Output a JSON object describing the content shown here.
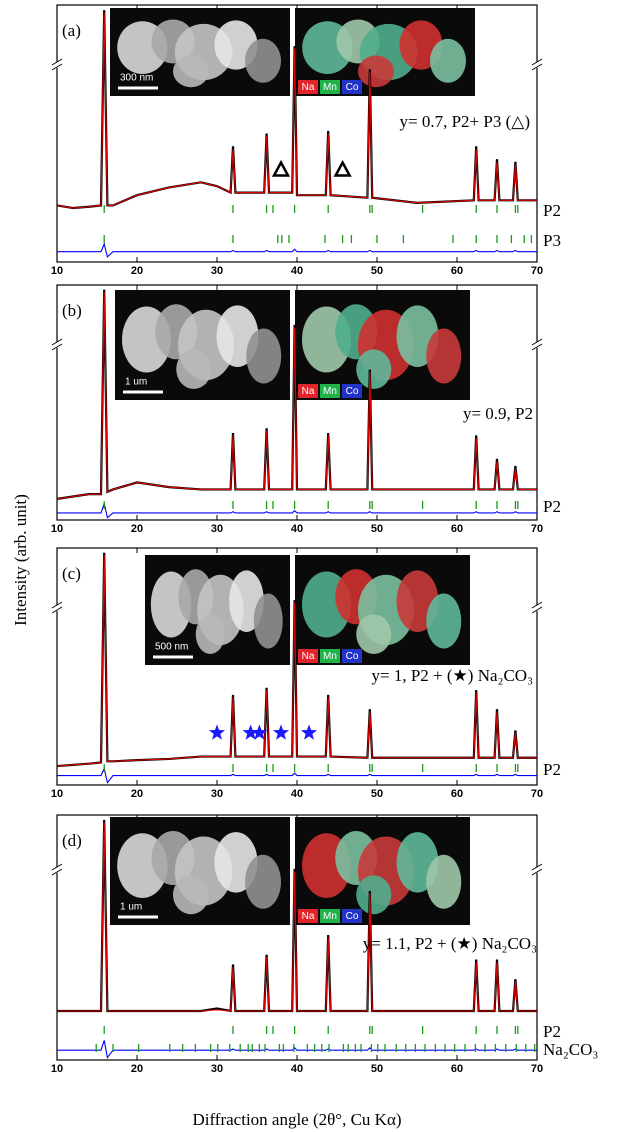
{
  "axis_labels": {
    "y": "Intensity (arb. unit)",
    "x": "Diffraction angle (2θ°, Cu Kα)"
  },
  "elements": [
    {
      "name": "Na",
      "color": "#e0242a"
    },
    {
      "name": "Mn",
      "color": "#1fb34a"
    },
    {
      "name": "Co",
      "color": "#2233c8"
    }
  ],
  "chart_data": [
    {
      "type": "line",
      "label": "(a)",
      "annotation": "y= 0.7, P2+ P3 (△)",
      "inset": {
        "scale_bar": "300 nm"
      },
      "xlim": [
        10,
        70
      ],
      "xticks": [
        10,
        20,
        30,
        40,
        50,
        60,
        70
      ],
      "ylim": [
        0,
        100
      ],
      "x": [
        10,
        12,
        14,
        15.5,
        15.9,
        16.3,
        17,
        20,
        24,
        28,
        30,
        31.7,
        32.0,
        32.3,
        35.9,
        36.2,
        36.5,
        39.4,
        39.7,
        40.0,
        43.6,
        43.9,
        44.2,
        48.8,
        49.1,
        49.4,
        55,
        62.1,
        62.4,
        62.7,
        64.7,
        65.0,
        65.3,
        67.0,
        67.3,
        67.6,
        70
      ],
      "series": [
        {
          "color": "#000000",
          "values": [
            22,
            21,
            21.5,
            22,
            98,
            22,
            22,
            26,
            29,
            31,
            29.5,
            27,
            45,
            27,
            27,
            50,
            27,
            27,
            84,
            26,
            26,
            51,
            26,
            25,
            75,
            25,
            23,
            24,
            45,
            24,
            24,
            40,
            24,
            24,
            39,
            24,
            24
          ]
        },
        {
          "color": "#e00000",
          "values": [
            22,
            21,
            21.5,
            22,
            97,
            22,
            22,
            26,
            29,
            31,
            29.5,
            27,
            44,
            27,
            27,
            49,
            27,
            27,
            83,
            26,
            26,
            50,
            26,
            25,
            74,
            25,
            23,
            24,
            44,
            24,
            24,
            39,
            24,
            24,
            38,
            24,
            24
          ]
        },
        {
          "color": "#0000ff",
          "values": [
            4,
            4,
            4,
            4,
            7,
            2,
            4,
            4,
            4,
            4,
            4,
            4,
            4.5,
            4,
            4,
            4.5,
            4,
            4,
            5,
            4,
            4,
            4.5,
            4,
            4,
            4.5,
            4,
            4,
            4,
            4.5,
            4,
            4,
            4.5,
            4,
            4,
            4.5,
            4,
            4
          ]
        }
      ],
      "phases": [
        {
          "name": "P2",
          "color": "#1a9a1a",
          "positions": [
            15.9,
            32.0,
            36.2,
            37.0,
            39.7,
            43.9,
            49.1,
            49.4,
            55.7,
            62.4,
            65.0,
            67.3,
            67.6
          ]
        },
        {
          "name": "P3",
          "color": "#1a9a1a",
          "positions": [
            15.9,
            32.0,
            37.6,
            38.1,
            39.0,
            43.5,
            45.7,
            46.8,
            50.0,
            53.3,
            59.5,
            62.4,
            65.0,
            66.8,
            68.4,
            69.3
          ]
        }
      ],
      "markers": {
        "symbol": "triangle",
        "color": "#000000",
        "x": [
          38.0,
          45.7
        ],
        "y": [
          36,
          36
        ]
      }
    },
    {
      "type": "line",
      "label": "(b)",
      "annotation": "y= 0.9, P2",
      "inset": {
        "scale_bar": "1 um"
      },
      "xlim": [
        10,
        70
      ],
      "xticks": [
        10,
        20,
        30,
        40,
        50,
        60,
        70
      ],
      "ylim": [
        0,
        100
      ],
      "x": [
        10,
        12,
        14,
        15.5,
        15.9,
        16.3,
        17,
        20,
        24,
        28,
        30,
        31.7,
        32.0,
        32.3,
        35.9,
        36.2,
        36.5,
        39.4,
        39.7,
        40.0,
        43.6,
        43.9,
        44.2,
        48.8,
        49.1,
        49.4,
        55,
        62.1,
        62.4,
        62.7,
        64.7,
        65.0,
        65.3,
        67.0,
        67.3,
        67.6,
        70
      ],
      "series": [
        {
          "color": "#000000",
          "values": [
            9,
            10,
            11,
            11,
            98,
            12,
            13,
            16,
            14,
            13,
            13,
            13,
            37,
            13,
            13,
            39,
            13,
            13,
            83,
            13,
            13,
            37,
            13,
            13,
            64,
            13,
            13,
            13,
            36,
            13,
            13,
            26,
            13,
            13,
            23,
            13,
            13
          ]
        },
        {
          "color": "#e00000",
          "values": [
            9,
            10,
            11,
            11,
            97,
            12,
            13,
            16,
            14,
            13,
            13,
            13,
            36,
            13,
            13,
            38,
            13,
            13,
            82,
            13,
            13,
            36,
            13,
            13,
            63,
            13,
            13,
            13,
            35,
            13,
            13,
            25,
            13,
            13,
            22,
            13,
            13
          ]
        },
        {
          "color": "#0000ff",
          "values": [
            3,
            3,
            3,
            3,
            7,
            1,
            3,
            3,
            3,
            3,
            3,
            3,
            3.5,
            3,
            3,
            3.5,
            3,
            3,
            4,
            3,
            3,
            3.5,
            3,
            3,
            3.5,
            3,
            3,
            3,
            3.5,
            3,
            3,
            3.5,
            3,
            3,
            3.5,
            3,
            3
          ]
        }
      ],
      "phases": [
        {
          "name": "P2",
          "color": "#1a9a1a",
          "positions": [
            15.9,
            32.0,
            36.2,
            37.0,
            39.7,
            43.9,
            49.1,
            49.4,
            55.7,
            62.4,
            65.0,
            67.3,
            67.6
          ]
        }
      ]
    },
    {
      "type": "line",
      "label": "(c)",
      "annotation": "y= 1, P2 + (★) Na₂CO₃",
      "inset": {
        "scale_bar": "500 nm"
      },
      "xlim": [
        10,
        70
      ],
      "xticks": [
        10,
        20,
        30,
        40,
        50,
        60,
        70
      ],
      "ylim": [
        0,
        100
      ],
      "x": [
        10,
        12,
        14,
        15.5,
        15.9,
        16.3,
        17,
        20,
        24,
        28,
        30,
        31.7,
        32.0,
        32.3,
        35.9,
        36.2,
        36.5,
        39.4,
        39.7,
        40.0,
        43.6,
        43.9,
        44.2,
        48.8,
        49.1,
        49.4,
        55,
        62.1,
        62.4,
        62.7,
        64.7,
        65.0,
        65.3,
        67.0,
        67.3,
        67.6,
        70
      ],
      "series": [
        {
          "color": "#000000",
          "values": [
            8,
            8.5,
            9,
            9.5,
            98,
            10,
            10,
            10.5,
            11,
            12,
            12,
            12,
            38,
            12,
            12,
            41,
            12,
            12,
            78,
            12,
            12,
            38,
            12,
            11.5,
            32,
            11.5,
            11.5,
            11.5,
            40,
            11.5,
            11.5,
            32,
            11.5,
            11.5,
            23,
            11.5,
            11.5
          ]
        },
        {
          "color": "#e00000",
          "values": [
            8,
            8.5,
            9,
            9.5,
            97,
            10,
            10,
            10.5,
            11,
            12,
            12,
            12,
            37,
            12,
            12,
            40,
            12,
            12,
            77,
            12,
            12,
            37,
            12,
            11.5,
            31,
            11.5,
            11.5,
            11.5,
            39,
            11.5,
            11.5,
            31,
            11.5,
            11.5,
            22,
            11.5,
            11.5
          ]
        },
        {
          "color": "#0000ff",
          "values": [
            4,
            4,
            4,
            4,
            7,
            1,
            4,
            4,
            4,
            4,
            4,
            4,
            4.5,
            4,
            4,
            4.5,
            4,
            4,
            5,
            4,
            4,
            4.5,
            4,
            4,
            4.5,
            4,
            4,
            4,
            4.5,
            4,
            4,
            4.5,
            4,
            4,
            4.5,
            4,
            4
          ]
        }
      ],
      "phases": [
        {
          "name": "P2",
          "color": "#1a9a1a",
          "positions": [
            15.9,
            32.0,
            36.2,
            37.0,
            39.7,
            43.9,
            49.1,
            49.4,
            55.7,
            62.4,
            65.0,
            67.3,
            67.6
          ]
        }
      ],
      "markers": {
        "symbol": "star",
        "color": "#1a1aff",
        "x": [
          30.0,
          34.2,
          35.3,
          38.0,
          41.5
        ],
        "y": [
          22,
          22,
          22,
          22,
          22
        ]
      }
    },
    {
      "type": "line",
      "label": "(d)",
      "annotation": "y= 1.1, P2 + (★) Na₂CO₃",
      "inset": {
        "scale_bar": "1 um"
      },
      "xlim": [
        10,
        70
      ],
      "xticks": [
        10,
        20,
        30,
        40,
        50,
        60,
        70
      ],
      "ylim": [
        0,
        100
      ],
      "x": [
        10,
        12,
        14,
        15.5,
        15.9,
        16.3,
        17,
        20,
        24,
        28,
        30,
        31.7,
        32.0,
        32.3,
        35.9,
        36.2,
        36.5,
        39.4,
        39.7,
        40.0,
        43.6,
        43.9,
        44.2,
        48.8,
        49.1,
        49.4,
        55,
        62.1,
        62.4,
        62.7,
        64.7,
        65.0,
        65.3,
        67.0,
        67.3,
        67.6,
        70
      ],
      "series": [
        {
          "color": "#000000",
          "values": [
            20,
            20,
            20,
            20,
            98,
            20,
            20,
            20,
            20,
            20,
            21,
            20,
            39,
            20,
            20,
            43,
            20,
            20,
            78,
            20,
            20,
            51,
            20,
            20,
            69,
            20,
            20,
            20,
            41,
            20,
            20,
            41,
            20,
            20,
            33,
            20,
            20
          ]
        },
        {
          "color": "#e00000",
          "values": [
            20,
            20,
            20,
            20,
            97,
            20,
            20,
            20,
            20,
            20,
            20.5,
            20,
            38,
            20,
            20,
            42,
            20,
            20,
            77,
            20,
            20,
            50,
            20,
            20,
            68,
            20,
            20,
            20,
            40,
            20,
            20,
            40,
            20,
            20,
            32,
            20,
            20
          ]
        },
        {
          "color": "#0000ff",
          "values": [
            4,
            4,
            4,
            4,
            8,
            1,
            4,
            4,
            4,
            4,
            4,
            4,
            4.5,
            4,
            4,
            4.5,
            4,
            4,
            5,
            4,
            4,
            4.5,
            4,
            4,
            5,
            4,
            4,
            4,
            4.5,
            4,
            4,
            4.5,
            4,
            4,
            4.5,
            4,
            4
          ]
        }
      ],
      "phases": [
        {
          "name": "P2",
          "color": "#1a9a1a",
          "positions": [
            15.9,
            32.0,
            36.2,
            37.0,
            39.7,
            43.9,
            49.1,
            49.4,
            55.7,
            62.4,
            65.0,
            67.3,
            67.6
          ]
        },
        {
          "name": "Na₂CO₃",
          "color": "#1a9a1a",
          "positions": [
            14.9,
            17.0,
            20.2,
            24.1,
            25.7,
            27.3,
            29.2,
            30.1,
            31.6,
            32.9,
            33.9,
            34.4,
            35.3,
            36.0,
            37.8,
            38.3,
            39.6,
            41.3,
            42.2,
            43.1,
            44.0,
            45.8,
            46.4,
            47.3,
            48.0,
            49.3,
            50.1,
            51.0,
            52.4,
            53.6,
            54.8,
            56.0,
            57.3,
            58.5,
            59.7,
            61.0,
            62.3,
            63.5,
            64.8,
            66.1,
            67.4,
            68.6,
            69.7
          ]
        }
      ]
    }
  ]
}
